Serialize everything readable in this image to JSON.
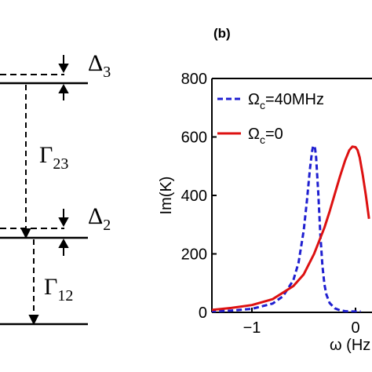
{
  "panel_b": {
    "label": "(b)"
  },
  "level_diagram": {
    "delta3": {
      "symbol": "Δ",
      "subscript": "3"
    },
    "delta2": {
      "symbol": "Δ",
      "subscript": "2"
    },
    "gamma23": {
      "symbol": "Γ",
      "subscript": "23"
    },
    "gamma12": {
      "symbol": "Γ",
      "subscript": "12"
    }
  },
  "chart_data": {
    "type": "line",
    "xlabel": "ω (Hz",
    "ylabel": "Im(K)",
    "xlim": [
      -1.4,
      0.15
    ],
    "ylim": [
      0,
      800
    ],
    "x_ticks": [
      {
        "value": -1,
        "label": "−1"
      },
      {
        "value": 0,
        "label": "0"
      }
    ],
    "y_ticks": [
      {
        "value": 0,
        "label": "0"
      },
      {
        "value": 200,
        "label": "200"
      },
      {
        "value": 400,
        "label": "400"
      },
      {
        "value": 600,
        "label": "600"
      },
      {
        "value": 800,
        "label": "800"
      }
    ],
    "legend_placement": "top-left",
    "series": [
      {
        "name_main": "Ω",
        "name_sub": "c",
        "name_rest": "=40MHz",
        "color": "#1f1fd0",
        "dash": "dashed",
        "x": [
          -1.4,
          -1.2,
          -1.0,
          -0.8,
          -0.7,
          -0.6,
          -0.55,
          -0.5,
          -0.47,
          -0.44,
          -0.42,
          -0.41,
          -0.4,
          -0.39,
          -0.38,
          -0.36,
          -0.34,
          -0.32,
          -0.3,
          -0.28,
          -0.25,
          -0.2,
          -0.15,
          -0.1,
          -0.05,
          0.0,
          0.05
        ],
        "y": [
          3,
          6,
          12,
          30,
          55,
          110,
          170,
          280,
          380,
          490,
          550,
          568,
          570,
          560,
          530,
          410,
          270,
          160,
          95,
          60,
          32,
          14,
          7,
          4,
          3,
          3,
          3
        ]
      },
      {
        "name_main": "Ω",
        "name_sub": "c",
        "name_rest": "=0",
        "color": "#dd1111",
        "dash": "solid",
        "x": [
          -1.4,
          -1.2,
          -1.0,
          -0.8,
          -0.6,
          -0.5,
          -0.4,
          -0.3,
          -0.25,
          -0.2,
          -0.15,
          -0.1,
          -0.06,
          -0.03,
          0.0,
          0.02,
          0.04,
          0.07,
          0.1,
          0.13
        ],
        "y": [
          8,
          15,
          25,
          45,
          90,
          130,
          200,
          290,
          345,
          405,
          465,
          520,
          555,
          567,
          565,
          555,
          530,
          470,
          400,
          320
        ]
      }
    ]
  }
}
